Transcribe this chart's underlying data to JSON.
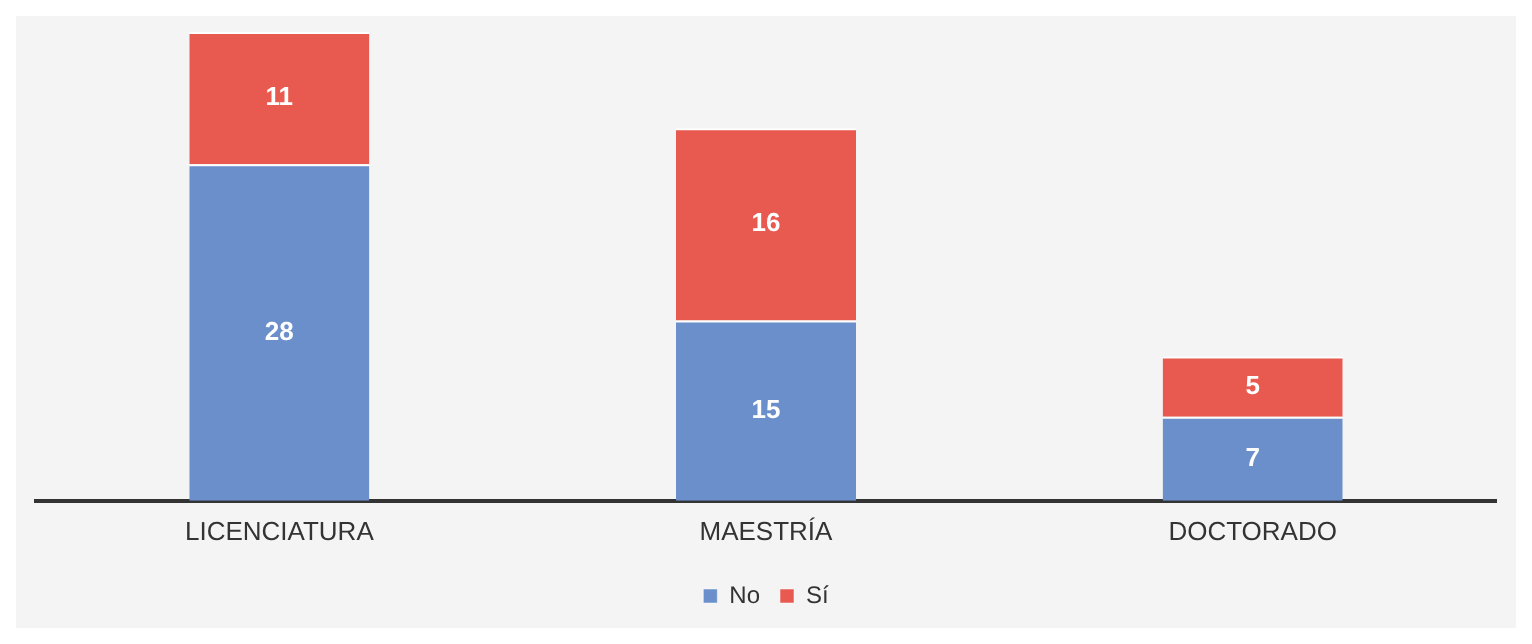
{
  "chart_data": {
    "type": "bar",
    "stacked": true,
    "data_labels": true,
    "categories": [
      "LICENCIATURA",
      "MAESTRÍA",
      "DOCTORADO"
    ],
    "series": [
      {
        "name": "No",
        "color": "#6a8fcb",
        "values": [
          28,
          15,
          7
        ]
      },
      {
        "name": "Sí",
        "color": "#e8594f",
        "values": [
          11,
          16,
          5
        ]
      }
    ],
    "legend": "bottom",
    "grid": false
  }
}
